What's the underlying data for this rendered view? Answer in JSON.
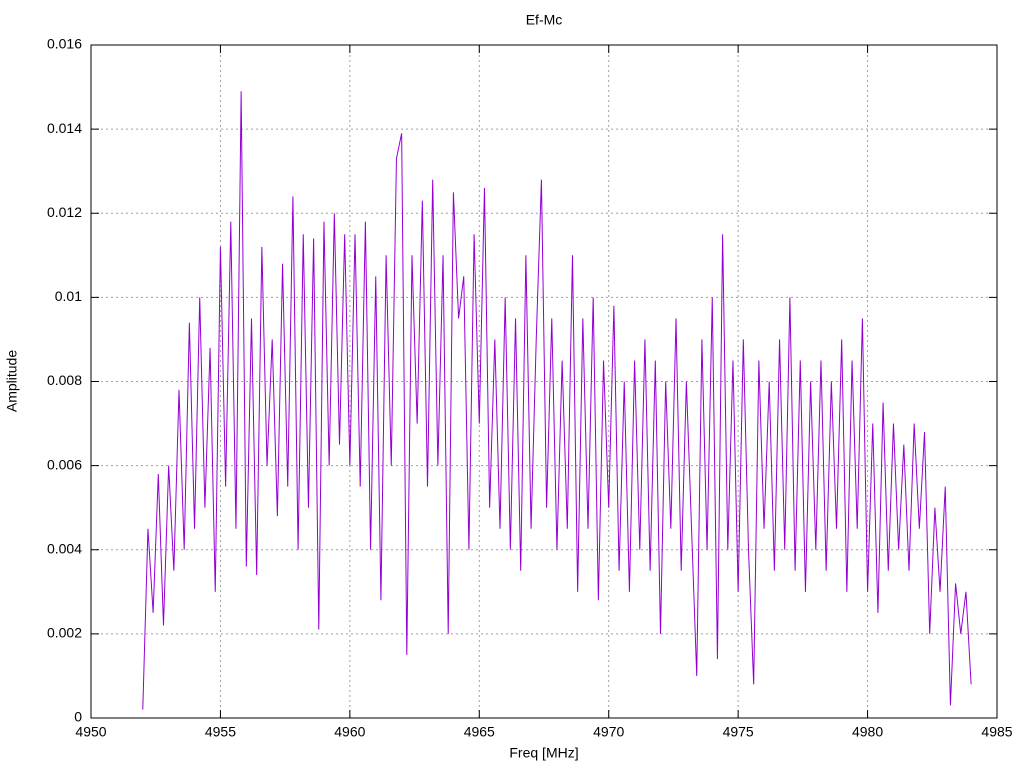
{
  "chart_data": {
    "type": "line",
    "title": "Ef-Mc",
    "x_label": "Freq [MHz]",
    "y_label": "Amplitude",
    "xlim": [
      4950,
      4985
    ],
    "xticks": [
      4950,
      4955,
      4960,
      4965,
      4970,
      4975,
      4980,
      4985
    ],
    "ylim": [
      0,
      0.016
    ],
    "yticks": [
      0,
      0.002,
      0.004,
      0.006,
      0.008,
      0.01,
      0.012,
      0.014,
      0.016
    ],
    "grid": true,
    "x": [
      4952.0,
      4952.2,
      4952.4,
      4952.6,
      4952.8,
      4953.0,
      4953.2,
      4953.4,
      4953.6,
      4953.8,
      4954.0,
      4954.2,
      4954.4,
      4954.6,
      4954.8,
      4955.0,
      4955.2,
      4955.4,
      4955.6,
      4955.8,
      4956.0,
      4956.2,
      4956.4,
      4956.6,
      4956.8,
      4957.0,
      4957.2,
      4957.4,
      4957.6,
      4957.8,
      4958.0,
      4958.2,
      4958.4,
      4958.6,
      4958.8,
      4959.0,
      4959.2,
      4959.4,
      4959.6,
      4959.8,
      4960.0,
      4960.2,
      4960.4,
      4960.6,
      4960.8,
      4961.0,
      4961.2,
      4961.4,
      4961.6,
      4961.8,
      4962.0,
      4962.2,
      4962.4,
      4962.6,
      4962.8,
      4963.0,
      4963.2,
      4963.4,
      4963.6,
      4963.8,
      4964.0,
      4964.2,
      4964.4,
      4964.6,
      4964.8,
      4965.0,
      4965.2,
      4965.4,
      4965.6,
      4965.8,
      4966.0,
      4966.2,
      4966.4,
      4966.6,
      4966.8,
      4967.0,
      4967.2,
      4967.4,
      4967.6,
      4967.8,
      4968.0,
      4968.2,
      4968.4,
      4968.6,
      4968.8,
      4969.0,
      4969.2,
      4969.4,
      4969.6,
      4969.8,
      4970.0,
      4970.2,
      4970.4,
      4970.6,
      4970.8,
      4971.0,
      4971.2,
      4971.4,
      4971.6,
      4971.8,
      4972.0,
      4972.2,
      4972.4,
      4972.6,
      4972.8,
      4973.0,
      4973.2,
      4973.4,
      4973.6,
      4973.8,
      4974.0,
      4974.2,
      4974.4,
      4974.6,
      4974.8,
      4975.0,
      4975.2,
      4975.4,
      4975.6,
      4975.8,
      4976.0,
      4976.2,
      4976.4,
      4976.6,
      4976.8,
      4977.0,
      4977.2,
      4977.4,
      4977.6,
      4977.8,
      4978.0,
      4978.2,
      4978.4,
      4978.6,
      4978.8,
      4979.0,
      4979.2,
      4979.4,
      4979.6,
      4979.8,
      4980.0,
      4980.2,
      4980.4,
      4980.6,
      4980.8,
      4981.0,
      4981.2,
      4981.4,
      4981.6,
      4981.8,
      4982.0,
      4982.2,
      4982.4,
      4982.6,
      4982.8,
      4983.0,
      4983.2,
      4983.4,
      4983.6,
      4983.8,
      4984.0
    ],
    "series": [
      {
        "color": "#9400d3",
        "values": [
          0.0002,
          0.0045,
          0.0025,
          0.0058,
          0.0022,
          0.006,
          0.0035,
          0.0078,
          0.004,
          0.0094,
          0.0045,
          0.01,
          0.005,
          0.0088,
          0.003,
          0.0112,
          0.0055,
          0.0118,
          0.0045,
          0.0149,
          0.0036,
          0.0095,
          0.0034,
          0.0112,
          0.006,
          0.009,
          0.0048,
          0.0108,
          0.0055,
          0.0124,
          0.004,
          0.0115,
          0.005,
          0.0114,
          0.0021,
          0.0118,
          0.006,
          0.012,
          0.0065,
          0.0115,
          0.006,
          0.0115,
          0.0055,
          0.0118,
          0.004,
          0.0105,
          0.0028,
          0.011,
          0.006,
          0.0133,
          0.0139,
          0.0015,
          0.011,
          0.007,
          0.0123,
          0.0055,
          0.0128,
          0.006,
          0.011,
          0.002,
          0.0125,
          0.0095,
          0.0105,
          0.004,
          0.0115,
          0.007,
          0.0126,
          0.005,
          0.009,
          0.0045,
          0.01,
          0.004,
          0.0095,
          0.0035,
          0.011,
          0.0045,
          0.009,
          0.0128,
          0.005,
          0.0095,
          0.004,
          0.0085,
          0.0045,
          0.011,
          0.003,
          0.0095,
          0.0045,
          0.01,
          0.0028,
          0.0085,
          0.005,
          0.0098,
          0.0035,
          0.008,
          0.003,
          0.0085,
          0.004,
          0.009,
          0.0035,
          0.0085,
          0.002,
          0.008,
          0.0045,
          0.0095,
          0.0035,
          0.008,
          0.0045,
          0.001,
          0.009,
          0.004,
          0.01,
          0.0014,
          0.0115,
          0.004,
          0.0085,
          0.003,
          0.009,
          0.004,
          0.0008,
          0.0085,
          0.0045,
          0.008,
          0.0035,
          0.009,
          0.004,
          0.01,
          0.0035,
          0.0085,
          0.003,
          0.008,
          0.004,
          0.0085,
          0.0035,
          0.008,
          0.0045,
          0.009,
          0.003,
          0.0085,
          0.0045,
          0.0095,
          0.003,
          0.007,
          0.0025,
          0.0075,
          0.0035,
          0.007,
          0.004,
          0.0065,
          0.0035,
          0.007,
          0.0045,
          0.0068,
          0.002,
          0.005,
          0.003,
          0.0055,
          0.0003,
          0.0032,
          0.002,
          0.003,
          0.0008
        ]
      }
    ]
  }
}
